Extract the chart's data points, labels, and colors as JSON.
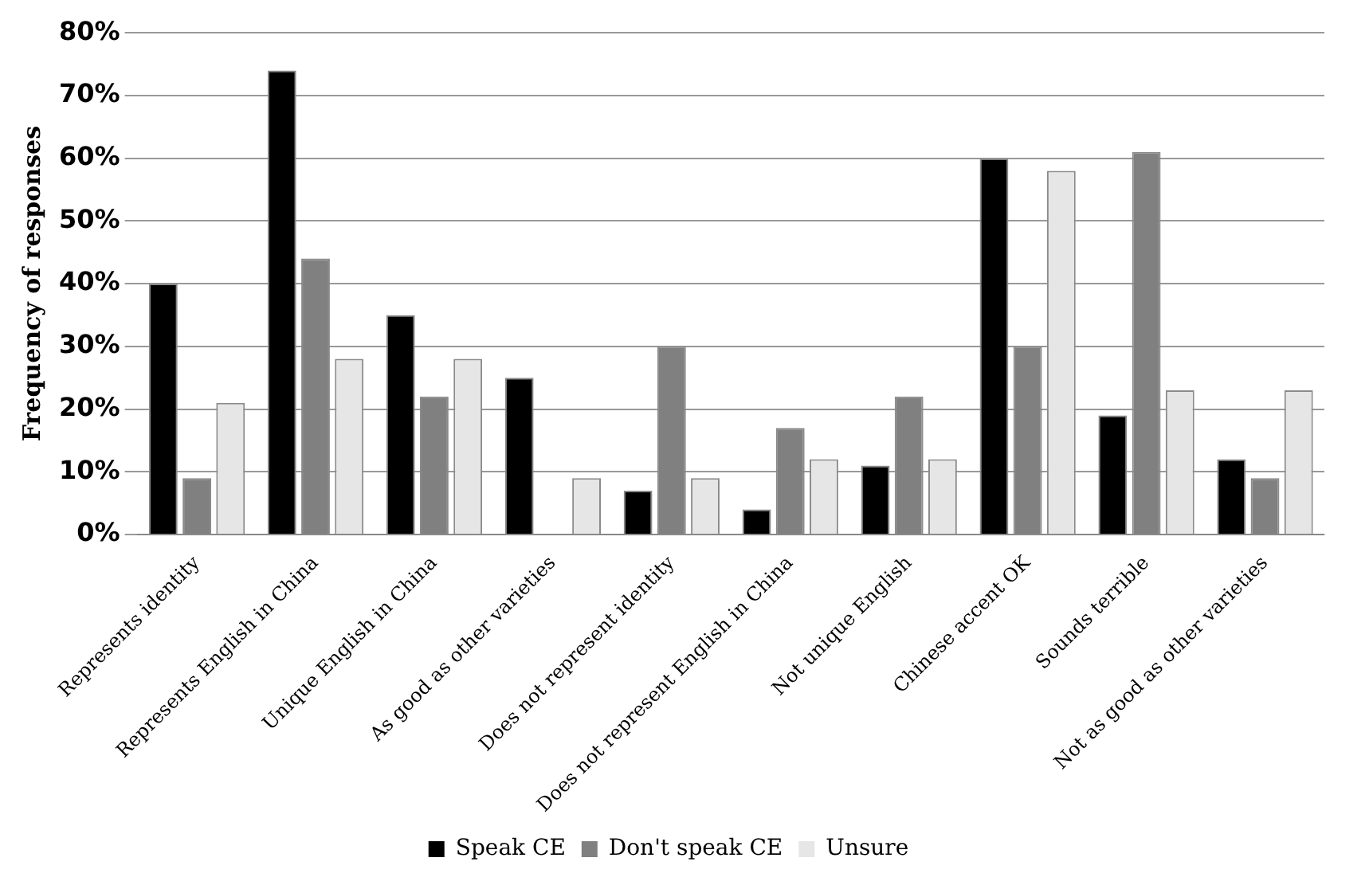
{
  "chart_data": {
    "type": "bar",
    "ylabel": "Frequency of responses",
    "categories": [
      "Represents identity",
      "Represents English in China",
      "Unique English in China",
      "As good as other varieties",
      "Does not represent identity",
      "Does not represent English in China",
      "Not unique English",
      "Chinese accent OK",
      "Sounds terrible",
      "Not as good as other varieties"
    ],
    "series": [
      {
        "name": "Speak CE",
        "color": "#000000",
        "values": [
          40,
          74,
          35,
          25,
          7,
          4,
          11,
          60,
          19,
          12
        ]
      },
      {
        "name": "Don't speak CE",
        "color": "#808080",
        "values": [
          9,
          44,
          22,
          0,
          30,
          17,
          22,
          30,
          61,
          9
        ]
      },
      {
        "name": "Unsure",
        "color": "#e6e6e6",
        "values": [
          21,
          28,
          28,
          9,
          9,
          12,
          12,
          58,
          23,
          23
        ]
      }
    ],
    "ylim": [
      0,
      80
    ],
    "yticks": [
      {
        "value": 0,
        "label": "0%"
      },
      {
        "value": 10,
        "label": "10%"
      },
      {
        "value": 20,
        "label": "20%"
      },
      {
        "value": 30,
        "label": "30%"
      },
      {
        "value": 40,
        "label": "40%"
      },
      {
        "value": 50,
        "label": "50%"
      },
      {
        "value": 60,
        "label": "60%"
      },
      {
        "value": 70,
        "label": "70%"
      },
      {
        "value": 80,
        "label": "80%"
      }
    ],
    "grid": "y",
    "legend": "bottom"
  }
}
